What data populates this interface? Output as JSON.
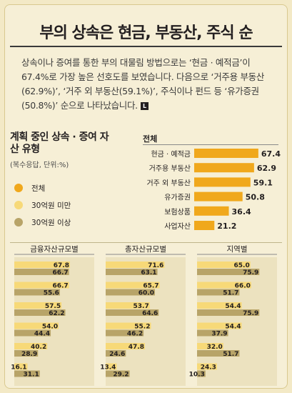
{
  "title": "부의 상속은 현금, 부동산, 주식 순",
  "lead": "상속이나 증여를 통한 부의 대물림 방법으로는 ‘현금 · 예적금’이 67.4%로 가장 높은 선호도를 보였습니다. 다음으로 ‘거주용 부동산(62.9%)’, ‘거주 외 부동산(59.1%)’, 주식이나 펀드 등 ‘유가증권(50.8%)’ 순으로 나타났습니다.",
  "lead_end_mark": "L",
  "subtitle": "계획 중인 상속 · 증여 자산 유형",
  "subnote": "(복수응답, 단위:%)",
  "legend": [
    {
      "label": "전체",
      "color": "#f0a81c"
    },
    {
      "label": "30억원 미만",
      "color": "#f7d978"
    },
    {
      "label": "30억원 이상",
      "color": "#b8a468"
    }
  ],
  "colors": {
    "total_bar": "#f0a81c",
    "under30": "#f7d978",
    "over30": "#b8a468",
    "panel_bg": "#ece2bf"
  },
  "chart_data": [
    {
      "type": "bar",
      "orientation": "horizontal",
      "title": "전체",
      "categories": [
        "현금 · 예적금",
        "거주용 부동산",
        "거주 외 부동산",
        "유가증권",
        "보험상품",
        "사업자산"
      ],
      "values": [
        67.4,
        62.9,
        59.1,
        50.8,
        36.4,
        21.2
      ],
      "xlim": [
        0,
        75
      ]
    },
    {
      "type": "bar",
      "orientation": "horizontal",
      "title": "금융자산규모별",
      "series": [
        {
          "name": "30억원 미만",
          "values": [
            67.8,
            66.7,
            57.5,
            54.0,
            40.2,
            16.1
          ]
        },
        {
          "name": "30억원 이상",
          "values": [
            66.7,
            55.6,
            62.2,
            44.4,
            28.9,
            31.1
          ]
        }
      ],
      "xlim": [
        0,
        80
      ]
    },
    {
      "type": "bar",
      "orientation": "horizontal",
      "title": "총자산규모별",
      "series": [
        {
          "name": "30억원 미만",
          "values": [
            71.6,
            65.7,
            53.7,
            55.2,
            47.8,
            13.4
          ]
        },
        {
          "name": "30억원 이상",
          "values": [
            63.1,
            60.0,
            64.6,
            46.2,
            24.6,
            29.2
          ]
        }
      ],
      "xlim": [
        0,
        80
      ]
    },
    {
      "type": "bar",
      "orientation": "horizontal",
      "title": "지역별",
      "series": [
        {
          "name": "30억원 미만",
          "values": [
            65.0,
            66.0,
            54.4,
            54.4,
            32.0,
            24.3
          ]
        },
        {
          "name": "30억원 이상",
          "values": [
            75.9,
            51.7,
            75.9,
            37.9,
            51.7,
            10.3
          ]
        }
      ],
      "xlim": [
        0,
        80
      ]
    }
  ]
}
